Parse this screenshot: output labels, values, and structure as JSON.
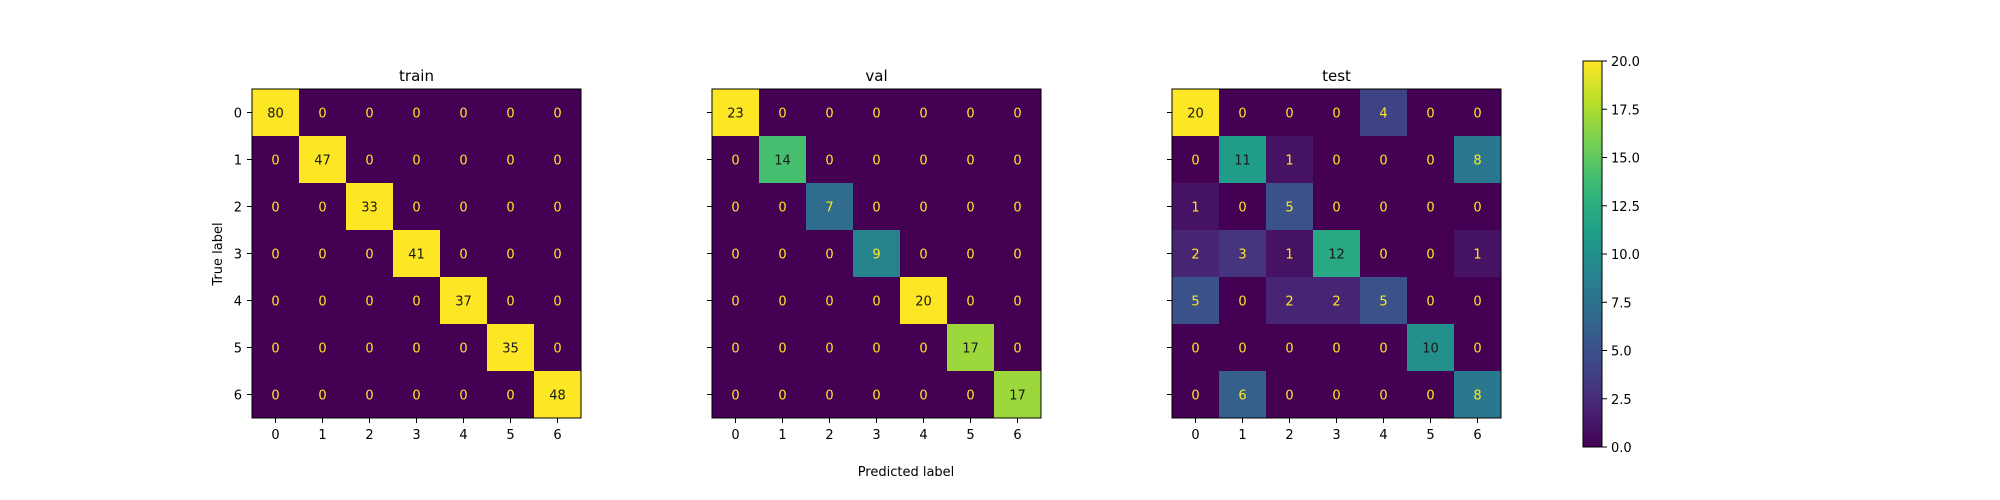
{
  "chart_data": {
    "type": "heatmap",
    "xlabel": "Predicted label",
    "ylabel": "True label",
    "classes": [
      "0",
      "1",
      "2",
      "3",
      "4",
      "5",
      "6"
    ],
    "color_range": [
      0,
      20
    ],
    "colormap": "viridis",
    "colorbar_ticks": [
      "0.0",
      "2.5",
      "5.0",
      "7.5",
      "10.0",
      "12.5",
      "15.0",
      "17.5",
      "20.0"
    ],
    "panels": [
      {
        "title": "train",
        "matrix": [
          [
            80,
            0,
            0,
            0,
            0,
            0,
            0
          ],
          [
            0,
            47,
            0,
            0,
            0,
            0,
            0
          ],
          [
            0,
            0,
            33,
            0,
            0,
            0,
            0
          ],
          [
            0,
            0,
            0,
            41,
            0,
            0,
            0
          ],
          [
            0,
            0,
            0,
            0,
            37,
            0,
            0
          ],
          [
            0,
            0,
            0,
            0,
            0,
            35,
            0
          ],
          [
            0,
            0,
            0,
            0,
            0,
            0,
            48
          ]
        ]
      },
      {
        "title": "val",
        "matrix": [
          [
            23,
            0,
            0,
            0,
            0,
            0,
            0
          ],
          [
            0,
            14,
            0,
            0,
            0,
            0,
            0
          ],
          [
            0,
            0,
            7,
            0,
            0,
            0,
            0
          ],
          [
            0,
            0,
            0,
            9,
            0,
            0,
            0
          ],
          [
            0,
            0,
            0,
            0,
            20,
            0,
            0
          ],
          [
            0,
            0,
            0,
            0,
            0,
            17,
            0
          ],
          [
            0,
            0,
            0,
            0,
            0,
            0,
            17
          ]
        ]
      },
      {
        "title": "test",
        "matrix": [
          [
            20,
            0,
            0,
            0,
            4,
            0,
            0
          ],
          [
            0,
            11,
            1,
            0,
            0,
            0,
            8
          ],
          [
            1,
            0,
            5,
            0,
            0,
            0,
            0
          ],
          [
            2,
            3,
            1,
            12,
            0,
            0,
            1
          ],
          [
            5,
            0,
            2,
            2,
            5,
            0,
            0
          ],
          [
            0,
            0,
            0,
            0,
            0,
            10,
            0
          ],
          [
            0,
            6,
            0,
            0,
            0,
            0,
            8
          ]
        ]
      }
    ]
  }
}
